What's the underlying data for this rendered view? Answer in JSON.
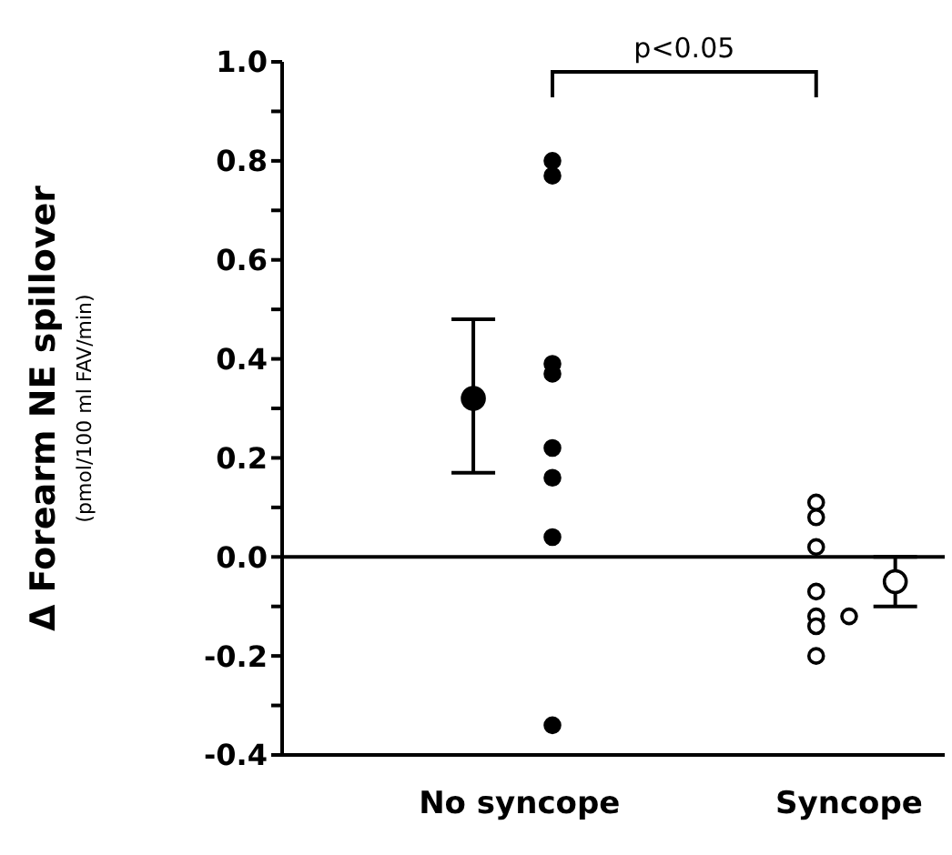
{
  "chart_data": {
    "type": "scatter",
    "ylabel": "Δ Forearm NE spillover\n(pmol/100 ml FAV/min)",
    "categories": [
      "No syncope",
      "Syncope"
    ],
    "ylim": [
      -0.4,
      1.0
    ],
    "yticks": [
      {
        "value": -0.4,
        "label": "-0.4"
      },
      {
        "value": -0.3,
        "label": null
      },
      {
        "value": -0.2,
        "label": "-0.2"
      },
      {
        "value": -0.1,
        "label": null
      },
      {
        "value": 0,
        "label": "0.0"
      },
      {
        "value": 0.1,
        "label": null
      },
      {
        "value": 0.2,
        "label": "0.2"
      },
      {
        "value": 0.3,
        "label": null
      },
      {
        "value": 0.4,
        "label": "0.4"
      },
      {
        "value": 0.5,
        "label": null
      },
      {
        "value": 0.6,
        "label": "0.6"
      },
      {
        "value": 0.7,
        "label": null
      },
      {
        "value": 0.8,
        "label": "0.8"
      },
      {
        "value": 0.9,
        "label": null
      },
      {
        "value": 1.0,
        "label": "1.0"
      }
    ],
    "grid": false,
    "legend": false,
    "marker": "circle",
    "ref_lines": [
      {
        "axis": "y",
        "value": 0,
        "color": "#000000"
      }
    ],
    "annotations": [
      "p<0.05"
    ],
    "series": [
      {
        "color": "#000000",
        "x": [
          "No syncope",
          "No syncope",
          "No syncope",
          "No syncope",
          "No syncope",
          "No syncope",
          "No syncope",
          "No syncope"
        ],
        "values": [
          0.8,
          0.77,
          0.39,
          0.37,
          0.22,
          0.16,
          0.04,
          -0.34
        ]
      },
      {
        "color": "#ffffff",
        "x": [
          "Syncope",
          "Syncope",
          "Syncope",
          "Syncope",
          "Syncope",
          "Syncope",
          "Syncope",
          "Syncope"
        ],
        "values": [
          0.11,
          0.08,
          0.02,
          -0.07,
          -0.12,
          -0.14,
          -0.2,
          -0.12
        ]
      },
      {
        "colors": [
          "#000000",
          "#ffffff"
        ],
        "x": [
          "No syncope",
          "Syncope"
        ],
        "values": [
          0.32,
          -0.05
        ],
        "errors": [
          [
            0.17,
            0.48
          ],
          [
            -0.1,
            0.0
          ]
        ]
      }
    ]
  }
}
